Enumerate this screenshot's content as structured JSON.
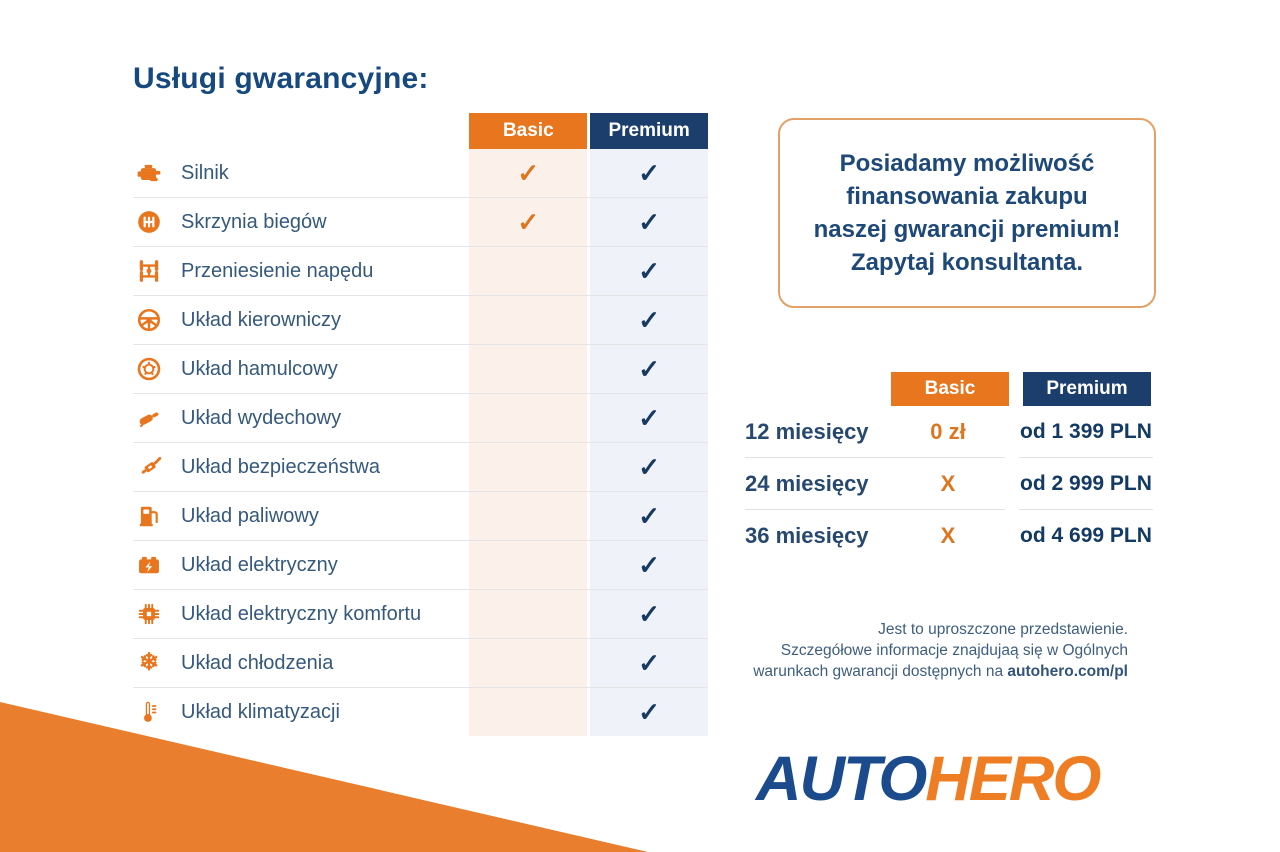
{
  "page": {
    "colors": {
      "accent_orange": "#E8761F",
      "accent_navy": "#1C3E6D",
      "basic_column_bg": "#FCF1EA",
      "premium_column_bg": "#EFF2F8",
      "text_blue": "#35597C",
      "background": "#FFFFFF"
    }
  },
  "title": "Usługi gwarancyjne:",
  "services": {
    "columns": {
      "basic": "Basic",
      "premium": "Premium"
    },
    "check_symbol": "✓",
    "rows": [
      {
        "icon": "engine-icon",
        "label": "Silnik",
        "basic": true,
        "premium": true
      },
      {
        "icon": "gearbox-icon",
        "label": "Skrzynia biegów",
        "basic": true,
        "premium": true
      },
      {
        "icon": "drivetrain-icon",
        "label": "Przeniesienie napędu",
        "basic": false,
        "premium": true
      },
      {
        "icon": "steering-wheel-icon",
        "label": "Układ kierowniczy",
        "basic": false,
        "premium": true
      },
      {
        "icon": "brake-disc-icon",
        "label": "Układ hamulcowy",
        "basic": false,
        "premium": true
      },
      {
        "icon": "exhaust-icon",
        "label": "Układ wydechowy",
        "basic": false,
        "premium": true
      },
      {
        "icon": "seatbelt-icon",
        "label": "Układ bezpieczeństwa",
        "basic": false,
        "premium": true
      },
      {
        "icon": "fuel-pump-icon",
        "label": "Układ paliwowy",
        "basic": false,
        "premium": true
      },
      {
        "icon": "battery-icon",
        "label": "Układ elektryczny",
        "basic": false,
        "premium": true
      },
      {
        "icon": "chip-icon",
        "label": "Układ elektryczny komfortu",
        "basic": false,
        "premium": true
      },
      {
        "icon": "snowflake-icon",
        "label": "Układ chłodzenia",
        "basic": false,
        "premium": true
      },
      {
        "icon": "thermometer-icon",
        "label": "Układ klimatyzacji",
        "basic": false,
        "premium": true
      }
    ]
  },
  "financing_note": "Posiadamy możliwość\nfinansowania zakupu\nnaszej gwarancji premium!\nZapytaj konsultanta.",
  "pricing": {
    "columns": {
      "basic": "Basic",
      "premium": "Premium"
    },
    "rows": [
      {
        "duration": "12 miesięcy",
        "basic": "0 zł",
        "premium": "od 1 399 PLN"
      },
      {
        "duration": "24 miesięcy",
        "basic": "X",
        "premium": "od 2 999 PLN"
      },
      {
        "duration": "36 miesięcy",
        "basic": "X",
        "premium": "od 4 699 PLN"
      }
    ]
  },
  "disclaimer": {
    "line1": "Jest to uproszczone przedstawienie.",
    "line2": "Szczegółowe informacje znajdujaą się w Ogólnych",
    "line3_prefix": "warunkach gwarancji dostępnych na ",
    "line3_bold": "autohero.com/pl"
  },
  "logo": {
    "part1": "AUTO",
    "part2": "HERO"
  }
}
